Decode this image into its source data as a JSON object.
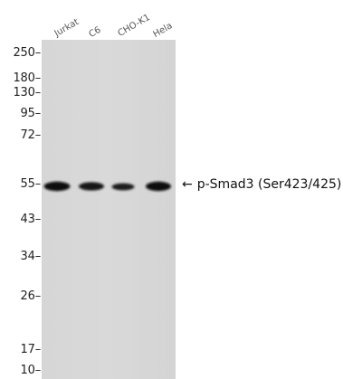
{
  "lanes": [
    {
      "label": "Jurkat"
    },
    {
      "label": "C6"
    },
    {
      "label": "CHO-K1"
    },
    {
      "label": "Hela"
    }
  ],
  "markers": [
    {
      "label": "250–"
    },
    {
      "label": "180–"
    },
    {
      "label": "130–"
    },
    {
      "label": "95–"
    },
    {
      "label": "72–"
    },
    {
      "label": "55–"
    },
    {
      "label": "43–"
    },
    {
      "label": "34–"
    },
    {
      "label": "26–"
    },
    {
      "label": "17–"
    },
    {
      "label": "10–"
    }
  ],
  "annotation": {
    "arrow": "←",
    "text": "p-Smad3 (Ser423/425)"
  }
}
